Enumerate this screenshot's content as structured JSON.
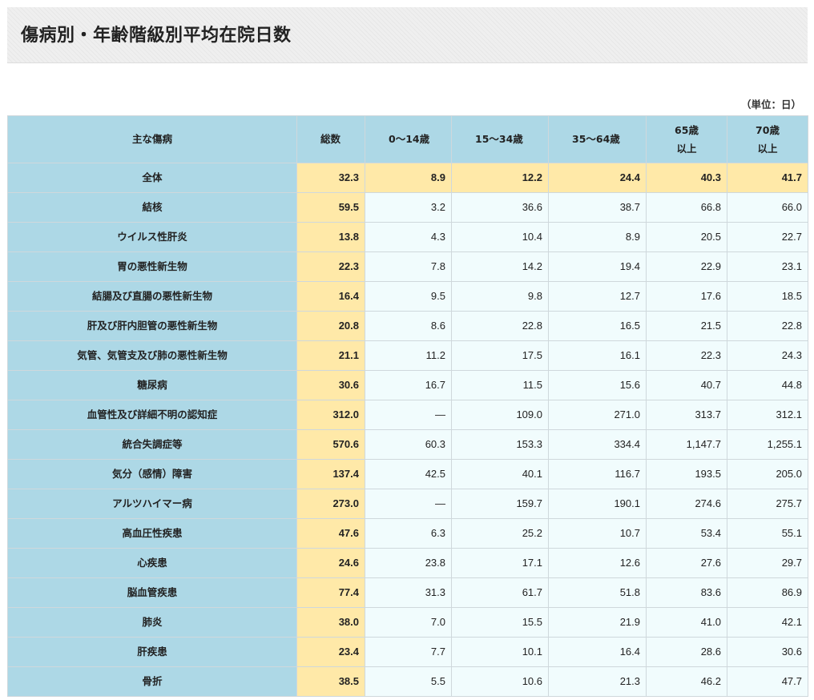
{
  "page": {
    "title": "傷病別・年齢階級別平均在院日数",
    "unit": "（単位：日）"
  },
  "table": {
    "headers": {
      "disease": "主な傷病",
      "total": "総数",
      "age_0_14": "0～14歳",
      "age_15_34": "15～34歳",
      "age_35_64": "35～64歳",
      "age_65_line1": "65歳",
      "age_65_line2": "以上",
      "age_70_line1": "70歳",
      "age_70_line2": "以上"
    },
    "rows": [
      {
        "disease": "全体",
        "total": "32.3",
        "a0_14": "8.9",
        "a15_34": "12.2",
        "a35_64": "24.4",
        "a65": "40.3",
        "a70": "41.7"
      },
      {
        "disease": "結核",
        "total": "59.5",
        "a0_14": "3.2",
        "a15_34": "36.6",
        "a35_64": "38.7",
        "a65": "66.8",
        "a70": "66.0"
      },
      {
        "disease": "ウイルス性肝炎",
        "total": "13.8",
        "a0_14": "4.3",
        "a15_34": "10.4",
        "a35_64": "8.9",
        "a65": "20.5",
        "a70": "22.7"
      },
      {
        "disease": "胃の悪性新生物",
        "total": "22.3",
        "a0_14": "7.8",
        "a15_34": "14.2",
        "a35_64": "19.4",
        "a65": "22.9",
        "a70": "23.1"
      },
      {
        "disease": "結腸及び直腸の悪性新生物",
        "total": "16.4",
        "a0_14": "9.5",
        "a15_34": "9.8",
        "a35_64": "12.7",
        "a65": "17.6",
        "a70": "18.5"
      },
      {
        "disease": "肝及び肝内胆管の悪性新生物",
        "total": "20.8",
        "a0_14": "8.6",
        "a15_34": "22.8",
        "a35_64": "16.5",
        "a65": "21.5",
        "a70": "22.8"
      },
      {
        "disease": "気管、気管支及び肺の悪性新生物",
        "total": "21.1",
        "a0_14": "11.2",
        "a15_34": "17.5",
        "a35_64": "16.1",
        "a65": "22.3",
        "a70": "24.3"
      },
      {
        "disease": "糖尿病",
        "total": "30.6",
        "a0_14": "16.7",
        "a15_34": "11.5",
        "a35_64": "15.6",
        "a65": "40.7",
        "a70": "44.8"
      },
      {
        "disease": "血管性及び詳細不明の認知症",
        "total": "312.0",
        "a0_14": "―",
        "a15_34": "109.0",
        "a35_64": "271.0",
        "a65": "313.7",
        "a70": "312.1"
      },
      {
        "disease": "統合失調症等",
        "total": "570.6",
        "a0_14": "60.3",
        "a15_34": "153.3",
        "a35_64": "334.4",
        "a65": "1,147.7",
        "a70": "1,255.1"
      },
      {
        "disease": "気分（感情）障害",
        "total": "137.4",
        "a0_14": "42.5",
        "a15_34": "40.1",
        "a35_64": "116.7",
        "a65": "193.5",
        "a70": "205.0"
      },
      {
        "disease": "アルツハイマー病",
        "total": "273.0",
        "a0_14": "―",
        "a15_34": "159.7",
        "a35_64": "190.1",
        "a65": "274.6",
        "a70": "275.7"
      },
      {
        "disease": "高血圧性疾患",
        "total": "47.6",
        "a0_14": "6.3",
        "a15_34": "25.2",
        "a35_64": "10.7",
        "a65": "53.4",
        "a70": "55.1"
      },
      {
        "disease": "心疾患",
        "total": "24.6",
        "a0_14": "23.8",
        "a15_34": "17.1",
        "a35_64": "12.6",
        "a65": "27.6",
        "a70": "29.7"
      },
      {
        "disease": "脳血管疾患",
        "total": "77.4",
        "a0_14": "31.3",
        "a15_34": "61.7",
        "a35_64": "51.8",
        "a65": "83.6",
        "a70": "86.9"
      },
      {
        "disease": "肺炎",
        "total": "38.0",
        "a0_14": "7.0",
        "a15_34": "15.5",
        "a35_64": "21.9",
        "a65": "41.0",
        "a70": "42.1"
      },
      {
        "disease": "肝疾患",
        "total": "23.4",
        "a0_14": "7.7",
        "a15_34": "10.1",
        "a35_64": "16.4",
        "a65": "28.6",
        "a70": "30.6"
      },
      {
        "disease": "骨折",
        "total": "38.5",
        "a0_14": "5.5",
        "a15_34": "10.6",
        "a35_64": "21.3",
        "a65": "46.2",
        "a70": "47.7"
      }
    ]
  }
}
